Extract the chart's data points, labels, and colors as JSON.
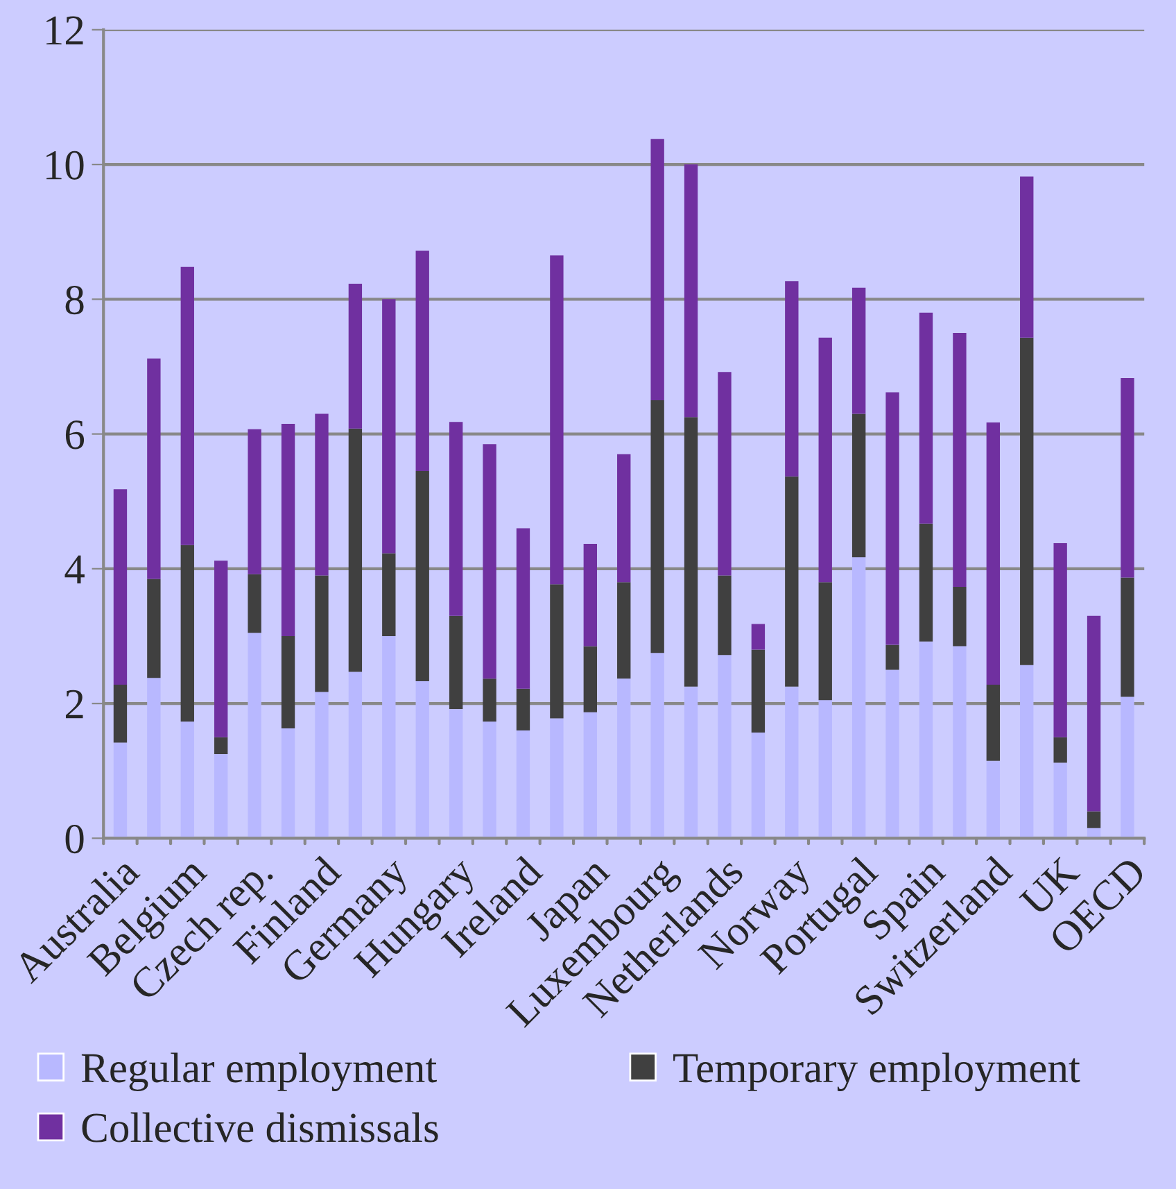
{
  "chart_data": {
    "type": "bar",
    "stacked": true,
    "categories": [
      "Australia",
      null,
      "Belgium",
      null,
      "Czech rep.",
      null,
      "Finland",
      null,
      "Germany",
      null,
      "Hungary",
      null,
      "Ireland",
      null,
      "Japan",
      null,
      "Luxembourg",
      null,
      "Netherlands",
      null,
      "Norway",
      null,
      "Portugal",
      null,
      "Spain",
      null,
      "Switzerland",
      null,
      "UK",
      null,
      "OECD"
    ],
    "series": [
      {
        "name": "Regular employment",
        "color": "#b8b8ff",
        "values": [
          1.42,
          2.38,
          1.73,
          1.25,
          3.05,
          1.63,
          2.17,
          2.47,
          3.0,
          2.33,
          1.92,
          1.73,
          1.6,
          1.78,
          1.87,
          2.37,
          2.75,
          2.25,
          2.72,
          1.57,
          2.25,
          2.05,
          4.17,
          2.5,
          2.92,
          2.85,
          1.15,
          2.57,
          1.12,
          0.15,
          2.1
        ]
      },
      {
        "name": "Temporary employment",
        "color": "#404040",
        "values": [
          0.86,
          1.47,
          2.62,
          0.25,
          0.87,
          1.37,
          1.73,
          3.61,
          1.23,
          3.12,
          1.38,
          0.64,
          0.62,
          1.99,
          0.98,
          1.43,
          3.75,
          4.0,
          1.18,
          1.23,
          3.12,
          1.75,
          2.13,
          0.37,
          1.75,
          0.88,
          1.13,
          4.86,
          0.38,
          0.25,
          1.77
        ]
      },
      {
        "name": "Collective dismissals",
        "color": "#7030a0",
        "values": [
          2.9,
          3.27,
          4.13,
          2.62,
          2.15,
          3.15,
          2.4,
          2.15,
          3.77,
          3.27,
          2.88,
          3.48,
          2.38,
          4.88,
          1.52,
          1.9,
          3.88,
          3.75,
          3.02,
          0.38,
          2.9,
          3.63,
          1.87,
          3.75,
          3.13,
          3.77,
          3.89,
          2.39,
          2.88,
          2.9,
          2.96
        ]
      }
    ],
    "ylim": [
      0,
      12
    ],
    "yticks": [
      0,
      2,
      4,
      6,
      8,
      10,
      12
    ],
    "grid": "y",
    "legend": "bottom"
  }
}
